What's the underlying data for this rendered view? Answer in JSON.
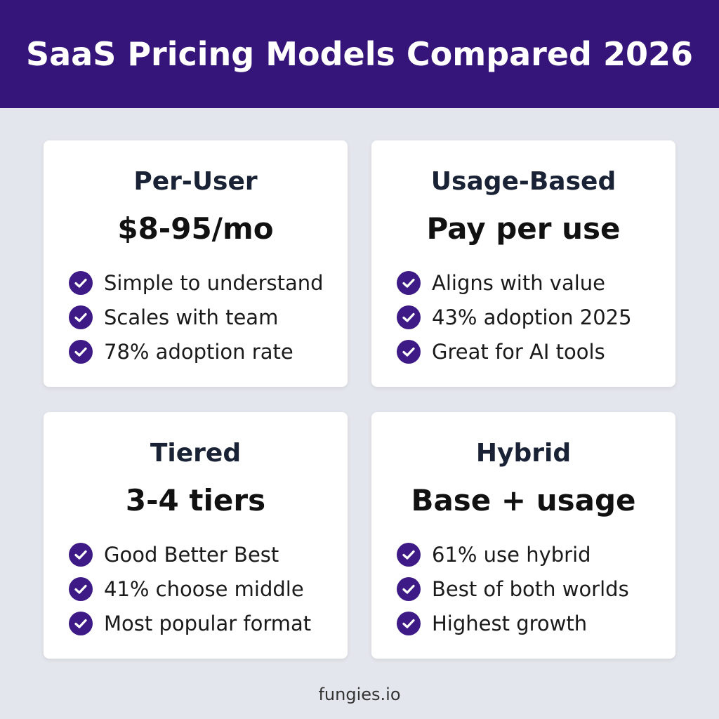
{
  "header": {
    "title": "SaaS Pricing Models Compared 2026"
  },
  "cards": [
    {
      "name": "Per-User",
      "price": "$8-95/mo",
      "features": [
        "Simple to understand",
        "Scales with team",
        "78% adoption rate"
      ]
    },
    {
      "name": "Usage-Based",
      "price": "Pay per use",
      "features": [
        "Aligns with value",
        "43% adoption 2025",
        "Great for AI tools"
      ]
    },
    {
      "name": "Tiered",
      "price": "3-4 tiers",
      "features": [
        "Good Better Best",
        "41% choose middle",
        "Most popular format"
      ]
    },
    {
      "name": "Hybrid",
      "price": "Base + usage",
      "features": [
        "61% use hybrid",
        "Best of both worlds",
        "Highest growth"
      ]
    }
  ],
  "footer": {
    "text": "fungies.io"
  }
}
